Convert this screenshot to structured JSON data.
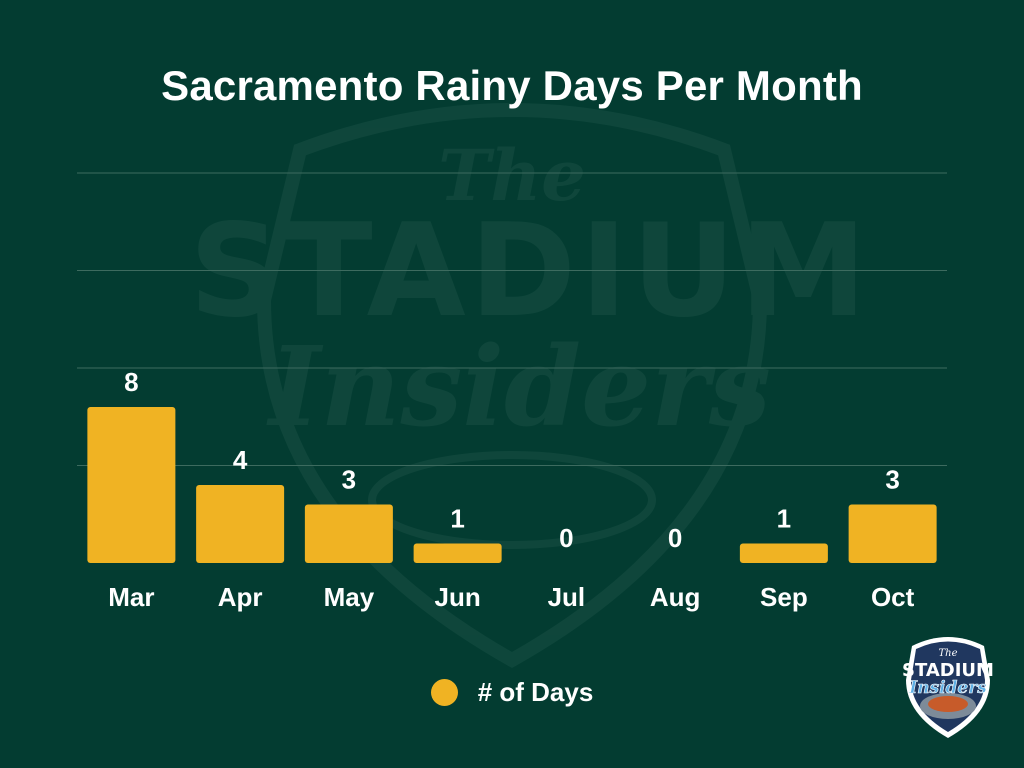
{
  "title": "Sacramento Rainy Days Per Month",
  "colors": {
    "background": "#033c31",
    "bar": "#f0b323",
    "text": "#ffffff",
    "grid": "#3d6b5f"
  },
  "watermark": {
    "line1": "The",
    "line2": "STADIUM",
    "line3": "Insiders"
  },
  "logo": {
    "line1": "The",
    "line2": "STADIUM",
    "line3": "Insiders"
  },
  "chart_data": {
    "type": "bar",
    "title": "Sacramento Rainy Days Per Month",
    "categories": [
      "Mar",
      "Apr",
      "May",
      "Jun",
      "Jul",
      "Aug",
      "Sep",
      "Oct"
    ],
    "series": [
      {
        "name": "# of Days",
        "values": [
          8,
          4,
          3,
          1,
          0,
          0,
          1,
          3
        ]
      }
    ],
    "xlabel": "",
    "ylabel": "",
    "ylim": [
      0,
      20
    ],
    "grid": true,
    "data_labels": true,
    "legend": "bottom-center"
  }
}
